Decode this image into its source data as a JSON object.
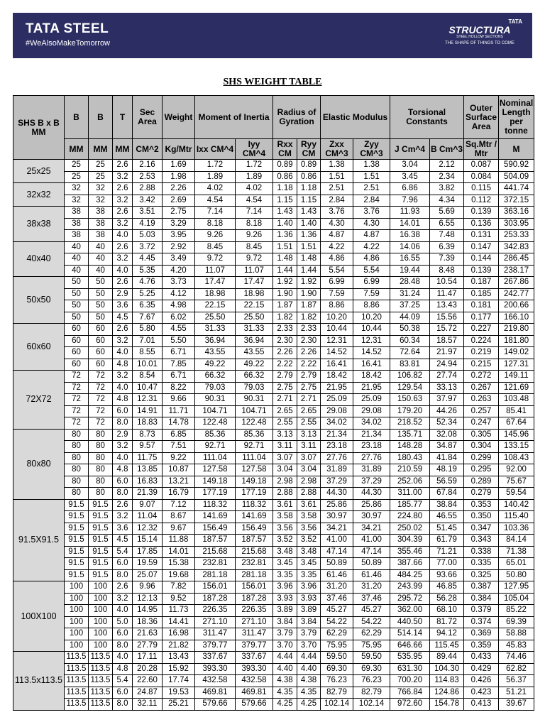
{
  "header": {
    "brand": "TATA STEEL",
    "hashtag": "#WeAlsoMakeTomorrow",
    "logo_top": "TATA",
    "logo_main": "STRUCTURA",
    "logo_sub": "STEEL HOLLOW SECTIONS",
    "tagline": "THE SHAPE OF THINGS TO COME"
  },
  "title": "SHS WEIGHT TABLE",
  "table": {
    "head1": [
      "SHS B x B MM",
      "B",
      "B",
      "T",
      "Sec Area",
      "Weight",
      "Moment of Inertia",
      "Radius of Gyration",
      "Elastic Modulus",
      "Torsional Constants",
      "Outer Surface Area",
      "Nominal Length per tonne"
    ],
    "head2": [
      "MM",
      "MM",
      "MM",
      "CM^2",
      "Kg/Mtr",
      "Ixx CM^4",
      "Iyy CM^4",
      "Rxx CM",
      "Ryy CM",
      "Zxx CM^3",
      "Zyy CM^3",
      "J Cm^4",
      "B Cm^3",
      "Sq.Mtr / Mtr",
      "M"
    ],
    "groups": [
      {
        "label": "25x25",
        "rows": [
          [
            "25",
            "25",
            "2.6",
            "2.16",
            "1.69",
            "1.72",
            "1.72",
            "0.89",
            "0.89",
            "1.38",
            "1.38",
            "3.04",
            "2.12",
            "0.087",
            "590.92"
          ],
          [
            "25",
            "25",
            "3.2",
            "2.53",
            "1.98",
            "1.89",
            "1.89",
            "0.86",
            "0.86",
            "1.51",
            "1.51",
            "3.45",
            "2.34",
            "0.084",
            "504.09"
          ]
        ]
      },
      {
        "label": "32x32",
        "rows": [
          [
            "32",
            "32",
            "2.6",
            "2.88",
            "2.26",
            "4.02",
            "4.02",
            "1.18",
            "1.18",
            "2.51",
            "2.51",
            "6.86",
            "3.82",
            "0.115",
            "441.74"
          ],
          [
            "32",
            "32",
            "3.2",
            "3.42",
            "2.69",
            "4.54",
            "4.54",
            "1.15",
            "1.15",
            "2.84",
            "2.84",
            "7.96",
            "4.34",
            "0.112",
            "372.15"
          ]
        ]
      },
      {
        "label": "38x38",
        "rows": [
          [
            "38",
            "38",
            "2.6",
            "3.51",
            "2.75",
            "7.14",
            "7.14",
            "1.43",
            "1.43",
            "3.76",
            "3.76",
            "11.93",
            "5.69",
            "0.139",
            "363.16"
          ],
          [
            "38",
            "38",
            "3.2",
            "4.19",
            "3.29",
            "8.18",
            "8.18",
            "1.40",
            "1.40",
            "4.30",
            "4.30",
            "14.01",
            "6.55",
            "0.136",
            "303.95"
          ],
          [
            "38",
            "38",
            "4.0",
            "5.03",
            "3.95",
            "9.26",
            "9.26",
            "1.36",
            "1.36",
            "4.87",
            "4.87",
            "16.38",
            "7.48",
            "0.131",
            "253.33"
          ]
        ]
      },
      {
        "label": "40x40",
        "rows": [
          [
            "40",
            "40",
            "2.6",
            "3.72",
            "2.92",
            "8.45",
            "8.45",
            "1.51",
            "1.51",
            "4.22",
            "4.22",
            "14.06",
            "6.39",
            "0.147",
            "342.83"
          ],
          [
            "40",
            "40",
            "3.2",
            "4.45",
            "3.49",
            "9.72",
            "9.72",
            "1.48",
            "1.48",
            "4.86",
            "4.86",
            "16.55",
            "7.39",
            "0.144",
            "286.45"
          ],
          [
            "40",
            "40",
            "4.0",
            "5.35",
            "4.20",
            "11.07",
            "11.07",
            "1.44",
            "1.44",
            "5.54",
            "5.54",
            "19.44",
            "8.48",
            "0.139",
            "238.17"
          ]
        ]
      },
      {
        "label": "50x50",
        "rows": [
          [
            "50",
            "50",
            "2.6",
            "4.76",
            "3.73",
            "17.47",
            "17.47",
            "1.92",
            "1.92",
            "6.99",
            "6.99",
            "28.48",
            "10.54",
            "0.187",
            "267.86"
          ],
          [
            "50",
            "50",
            "2.9",
            "5.25",
            "4.12",
            "18.98",
            "18.98",
            "1.90",
            "1.90",
            "7.59",
            "7.59",
            "31.24",
            "11.47",
            "0.185",
            "242.77"
          ],
          [
            "50",
            "50",
            "3.6",
            "6.35",
            "4.98",
            "22.15",
            "22.15",
            "1.87",
            "1.87",
            "8.86",
            "8.86",
            "37.25",
            "13.43",
            "0.181",
            "200.66"
          ],
          [
            "50",
            "50",
            "4.5",
            "7.67",
            "6.02",
            "25.50",
            "25.50",
            "1.82",
            "1.82",
            "10.20",
            "10.20",
            "44.09",
            "15.56",
            "0.177",
            "166.10"
          ]
        ]
      },
      {
        "label": "60x60",
        "rows": [
          [
            "60",
            "60",
            "2.6",
            "5.80",
            "4.55",
            "31.33",
            "31.33",
            "2.33",
            "2.33",
            "10.44",
            "10.44",
            "50.38",
            "15.72",
            "0.227",
            "219.80"
          ],
          [
            "60",
            "60",
            "3.2",
            "7.01",
            "5.50",
            "36.94",
            "36.94",
            "2.30",
            "2.30",
            "12.31",
            "12.31",
            "60.34",
            "18.57",
            "0.224",
            "181.80"
          ],
          [
            "60",
            "60",
            "4.0",
            "8.55",
            "6.71",
            "43.55",
            "43.55",
            "2.26",
            "2.26",
            "14.52",
            "14.52",
            "72.64",
            "21.97",
            "0.219",
            "149.02"
          ],
          [
            "60",
            "60",
            "4.8",
            "10.01",
            "7.85",
            "49.22",
            "49.22",
            "2.22",
            "2.22",
            "16.41",
            "16.41",
            "83.81",
            "24.94",
            "0.215",
            "127.31"
          ]
        ]
      },
      {
        "label": "72X72",
        "rows": [
          [
            "72",
            "72",
            "3.2",
            "8.54",
            "6.71",
            "66.32",
            "66.32",
            "2.79",
            "2.79",
            "18.42",
            "18.42",
            "106.82",
            "27.74",
            "0.272",
            "149.11"
          ],
          [
            "72",
            "72",
            "4.0",
            "10.47",
            "8.22",
            "79.03",
            "79.03",
            "2.75",
            "2.75",
            "21.95",
            "21.95",
            "129.54",
            "33.13",
            "0.267",
            "121.69"
          ],
          [
            "72",
            "72",
            "4.8",
            "12.31",
            "9.66",
            "90.31",
            "90.31",
            "2.71",
            "2.71",
            "25.09",
            "25.09",
            "150.63",
            "37.97",
            "0.263",
            "103.48"
          ],
          [
            "72",
            "72",
            "6.0",
            "14.91",
            "11.71",
            "104.71",
            "104.71",
            "2.65",
            "2.65",
            "29.08",
            "29.08",
            "179.20",
            "44.26",
            "0.257",
            "85.41"
          ],
          [
            "72",
            "72",
            "8.0",
            "18.83",
            "14.78",
            "122.48",
            "122.48",
            "2.55",
            "2.55",
            "34.02",
            "34.02",
            "218.52",
            "52.34",
            "0.247",
            "67.64"
          ]
        ]
      },
      {
        "label": "80x80",
        "rows": [
          [
            "80",
            "80",
            "2.9",
            "8.73",
            "6.85",
            "85.36",
            "85.36",
            "3.13",
            "3.13",
            "21.34",
            "21.34",
            "135.71",
            "32.08",
            "0.305",
            "145.96"
          ],
          [
            "80",
            "80",
            "3.2",
            "9.57",
            "7.51",
            "92.71",
            "92.71",
            "3.11",
            "3.11",
            "23.18",
            "23.18",
            "148.28",
            "34.87",
            "0.304",
            "133.15"
          ],
          [
            "80",
            "80",
            "4.0",
            "11.75",
            "9.22",
            "111.04",
            "111.04",
            "3.07",
            "3.07",
            "27.76",
            "27.76",
            "180.43",
            "41.84",
            "0.299",
            "108.43"
          ],
          [
            "80",
            "80",
            "4.8",
            "13.85",
            "10.87",
            "127.58",
            "127.58",
            "3.04",
            "3.04",
            "31.89",
            "31.89",
            "210.59",
            "48.19",
            "0.295",
            "92.00"
          ],
          [
            "80",
            "80",
            "6.0",
            "16.83",
            "13.21",
            "149.18",
            "149.18",
            "2.98",
            "2.98",
            "37.29",
            "37.29",
            "252.06",
            "56.59",
            "0.289",
            "75.67"
          ],
          [
            "80",
            "80",
            "8.0",
            "21.39",
            "16.79",
            "177.19",
            "177.19",
            "2.88",
            "2.88",
            "44.30",
            "44.30",
            "311.00",
            "67.84",
            "0.279",
            "59.54"
          ]
        ]
      },
      {
        "label": "91.5X91.5",
        "rows": [
          [
            "91.5",
            "91.5",
            "2.6",
            "9.07",
            "7.12",
            "118.32",
            "118.32",
            "3.61",
            "3.61",
            "25.86",
            "25.86",
            "185.77",
            "38.84",
            "0.353",
            "140.42"
          ],
          [
            "91.5",
            "91.5",
            "3.2",
            "11.04",
            "8.67",
            "141.69",
            "141.69",
            "3.58",
            "3.58",
            "30.97",
            "30.97",
            "224.80",
            "46.55",
            "0.350",
            "115.40"
          ],
          [
            "91.5",
            "91.5",
            "3.6",
            "12.32",
            "9.67",
            "156.49",
            "156.49",
            "3.56",
            "3.56",
            "34.21",
            "34.21",
            "250.02",
            "51.45",
            "0.347",
            "103.36"
          ],
          [
            "91.5",
            "91.5",
            "4.5",
            "15.14",
            "11.88",
            "187.57",
            "187.57",
            "3.52",
            "3.52",
            "41.00",
            "41.00",
            "304.39",
            "61.79",
            "0.343",
            "84.14"
          ],
          [
            "91.5",
            "91.5",
            "5.4",
            "17.85",
            "14.01",
            "215.68",
            "215.68",
            "3.48",
            "3.48",
            "47.14",
            "47.14",
            "355.46",
            "71.21",
            "0.338",
            "71.38"
          ],
          [
            "91.5",
            "91.5",
            "6.0",
            "19.59",
            "15.38",
            "232.81",
            "232.81",
            "3.45",
            "3.45",
            "50.89",
            "50.89",
            "387.66",
            "77.00",
            "0.335",
            "65.01"
          ],
          [
            "91.5",
            "91.5",
            "8.0",
            "25.07",
            "19.68",
            "281.18",
            "281.18",
            "3.35",
            "3.35",
            "61.46",
            "61.46",
            "484.25",
            "93.66",
            "0.325",
            "50.80"
          ]
        ]
      },
      {
        "label": "100X100",
        "rows": [
          [
            "100",
            "100",
            "2.6",
            "9.96",
            "7.82",
            "156.01",
            "156.01",
            "3.96",
            "3.96",
            "31.20",
            "31.20",
            "243.99",
            "46.85",
            "0.387",
            "127.95"
          ],
          [
            "100",
            "100",
            "3.2",
            "12.13",
            "9.52",
            "187.28",
            "187.28",
            "3.93",
            "3.93",
            "37.46",
            "37.46",
            "295.72",
            "56.28",
            "0.384",
            "105.04"
          ],
          [
            "100",
            "100",
            "4.0",
            "14.95",
            "11.73",
            "226.35",
            "226.35",
            "3.89",
            "3.89",
            "45.27",
            "45.27",
            "362.00",
            "68.10",
            "0.379",
            "85.22"
          ],
          [
            "100",
            "100",
            "5.0",
            "18.36",
            "14.41",
            "271.10",
            "271.10",
            "3.84",
            "3.84",
            "54.22",
            "54.22",
            "440.50",
            "81.72",
            "0.374",
            "69.39"
          ],
          [
            "100",
            "100",
            "6.0",
            "21.63",
            "16.98",
            "311.47",
            "311.47",
            "3.79",
            "3.79",
            "62.29",
            "62.29",
            "514.14",
            "94.12",
            "0.369",
            "58.88"
          ],
          [
            "100",
            "100",
            "8.0",
            "27.79",
            "21.82",
            "379.77",
            "379.77",
            "3.70",
            "3.70",
            "75.95",
            "75.95",
            "646.66",
            "115.45",
            "0.359",
            "45.83"
          ]
        ]
      },
      {
        "label": "113.5x113.5",
        "rows": [
          [
            "113.5",
            "113.5",
            "4.0",
            "17.11",
            "13.43",
            "337.67",
            "337.67",
            "4.44",
            "4.44",
            "59.50",
            "59.50",
            "535.95",
            "89.44",
            "0.433",
            "74.46"
          ],
          [
            "113.5",
            "113.5",
            "4.8",
            "20.28",
            "15.92",
            "393.30",
            "393.30",
            "4.40",
            "4.40",
            "69.30",
            "69.30",
            "631.30",
            "104.30",
            "0.429",
            "62.82"
          ],
          [
            "113.5",
            "113.5",
            "5.4",
            "22.60",
            "17.74",
            "432.58",
            "432.58",
            "4.38",
            "4.38",
            "76.23",
            "76.23",
            "700.20",
            "114.83",
            "0.426",
            "56.37"
          ],
          [
            "113.5",
            "113.5",
            "6.0",
            "24.87",
            "19.53",
            "469.81",
            "469.81",
            "4.35",
            "4.35",
            "82.79",
            "82.79",
            "766.84",
            "124.86",
            "0.423",
            "51.21"
          ],
          [
            "113.5",
            "113.5",
            "8.0",
            "32.11",
            "25.21",
            "579.66",
            "579.66",
            "4.25",
            "4.25",
            "102.14",
            "102.14",
            "972.60",
            "154.78",
            "0.413",
            "39.67"
          ]
        ]
      }
    ]
  }
}
